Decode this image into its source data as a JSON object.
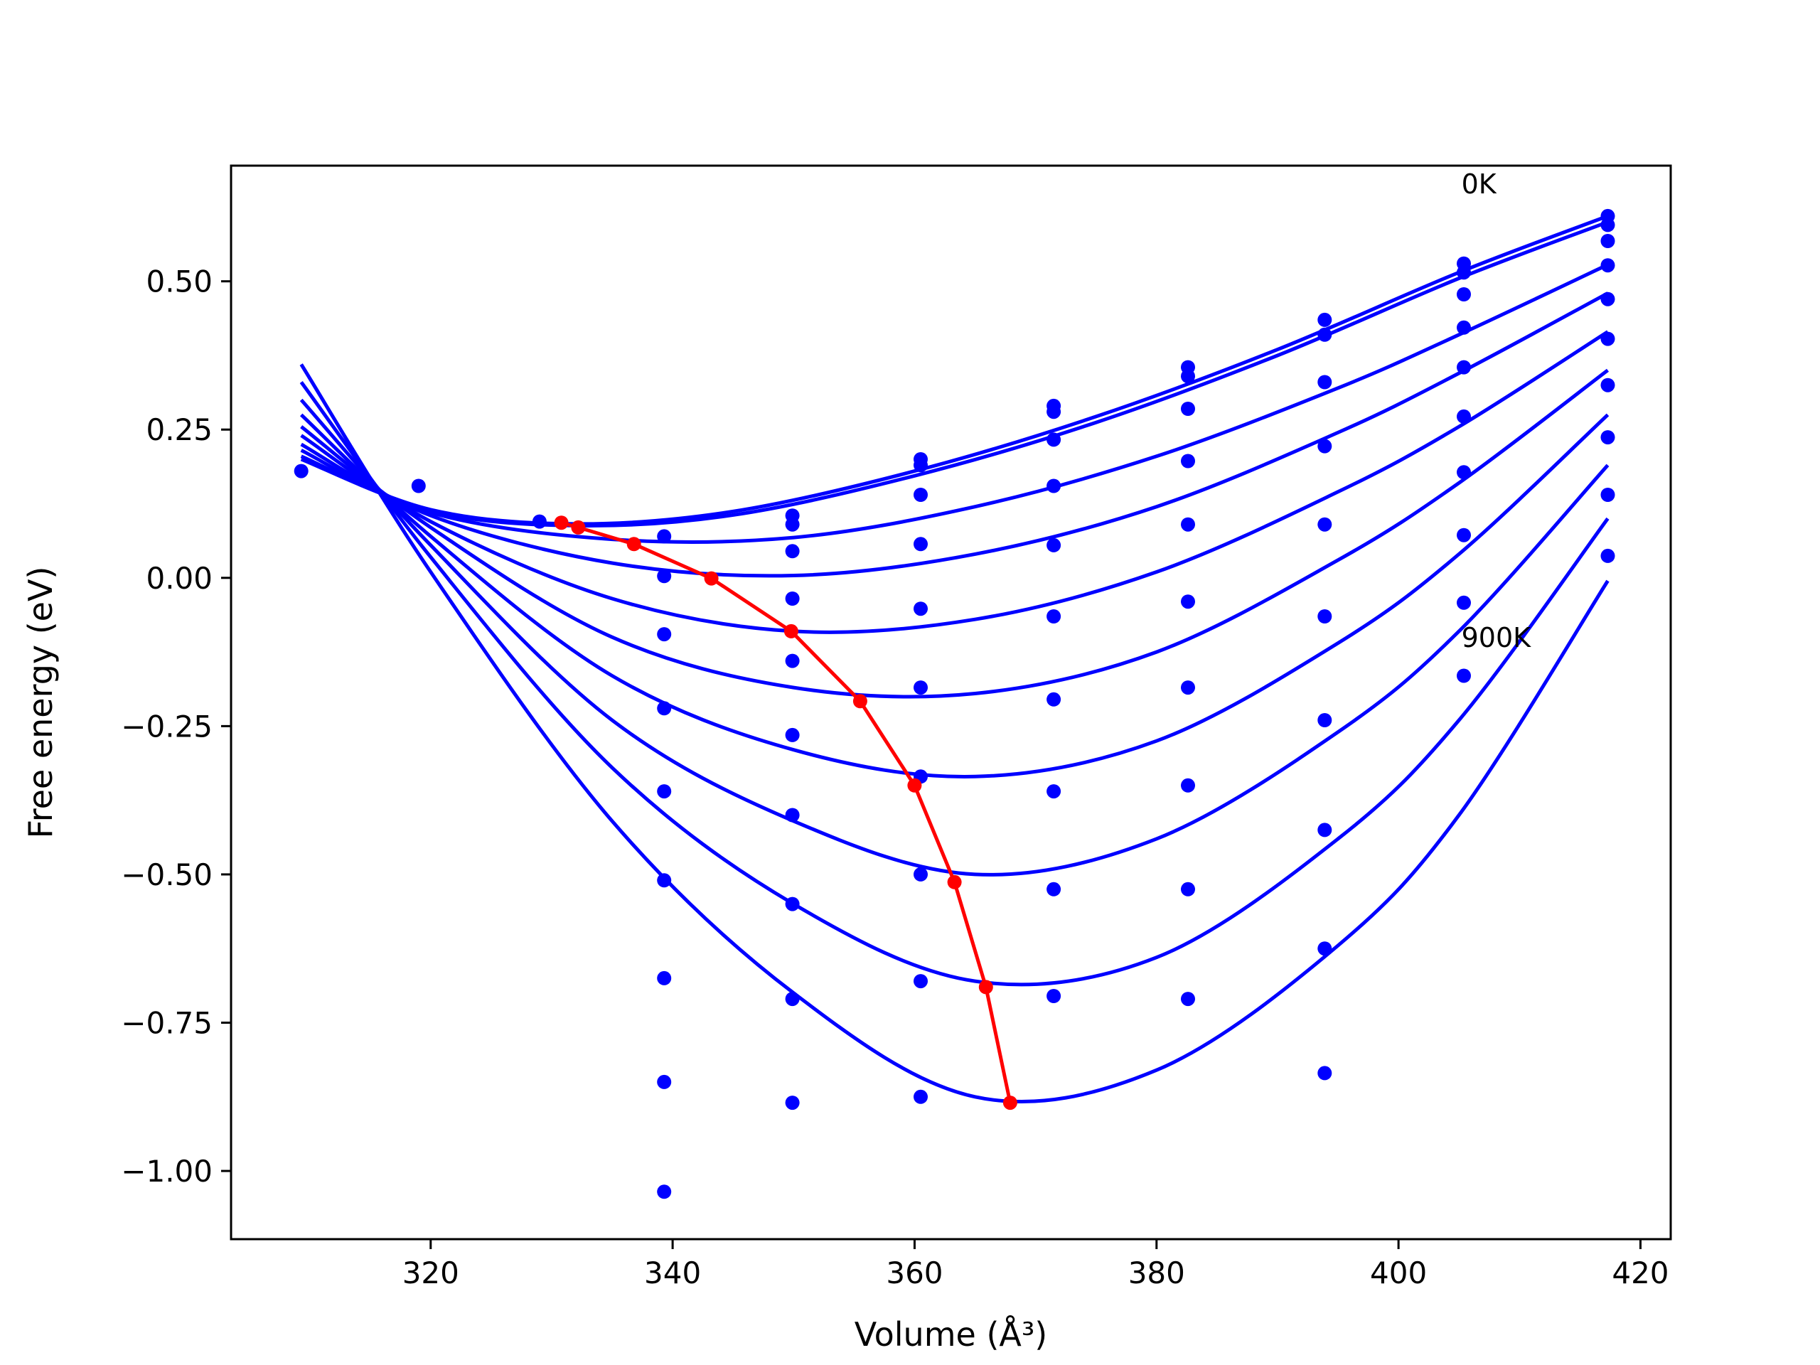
{
  "chart_data": {
    "type": "scatter",
    "title": "",
    "xlabel": "Volume (Å³)",
    "ylabel": "Free energy (eV)",
    "xlim": [
      303.5,
      422.5
    ],
    "ylim": [
      -1.115,
      0.695
    ],
    "x_ticks": [
      320,
      340,
      360,
      380,
      400,
      420
    ],
    "x_tick_labels": [
      "320",
      "340",
      "360",
      "380",
      "400",
      "420"
    ],
    "y_ticks": [
      0.5,
      0.25,
      0.0,
      -0.25,
      -0.5,
      -0.75,
      -1.0
    ],
    "y_tick_labels": [
      "0.50",
      "0.25",
      "0.00",
      "−0.25",
      "−0.50",
      "−0.75",
      "−1.00"
    ],
    "grid": false,
    "annotations": [
      {
        "text": "0K",
        "x": 405.2,
        "y": 0.665
      },
      {
        "text": "900K",
        "x": 405.2,
        "y": -0.1
      }
    ],
    "fit_curves": {
      "color": "#0000ff",
      "x_range": [
        309.3,
        417.3
      ],
      "curves": [
        {
          "x": [
            309.3,
            320,
            332,
            345,
            360,
            375,
            390,
            405,
            417.3
          ],
          "y": [
            0.2,
            0.115,
            0.091,
            0.112,
            0.18,
            0.272,
            0.385,
            0.515,
            0.61
          ]
        },
        {
          "x": [
            309.3,
            320,
            332,
            345,
            360,
            375,
            390,
            405,
            417.3
          ],
          "y": [
            0.205,
            0.113,
            0.088,
            0.106,
            0.172,
            0.262,
            0.375,
            0.505,
            0.6
          ]
        },
        {
          "x": [
            309.3,
            320,
            335,
            350,
            365,
            380,
            395,
            405,
            417.3
          ],
          "y": [
            0.215,
            0.11,
            0.065,
            0.068,
            0.12,
            0.205,
            0.32,
            0.41,
            0.528
          ]
        },
        {
          "x": [
            309.3,
            320,
            335,
            350,
            365,
            380,
            395,
            405,
            417.3
          ],
          "y": [
            0.225,
            0.105,
            0.025,
            0.004,
            0.04,
            0.12,
            0.245,
            0.345,
            0.48
          ]
        },
        {
          "x": [
            309.3,
            320,
            335,
            350,
            365,
            380,
            395,
            405,
            417.3
          ],
          "y": [
            0.24,
            0.095,
            -0.035,
            -0.09,
            -0.07,
            0.01,
            0.145,
            0.255,
            0.415
          ]
        },
        {
          "x": [
            309.3,
            320,
            335,
            350,
            365,
            380,
            395,
            405,
            417.3
          ],
          "y": [
            0.255,
            0.085,
            -0.1,
            -0.185,
            -0.195,
            -0.125,
            0.03,
            0.16,
            0.35
          ]
        },
        {
          "x": [
            309.3,
            320,
            335,
            350,
            365,
            380,
            395,
            405,
            417.3
          ],
          "y": [
            0.275,
            0.07,
            -0.165,
            -0.29,
            -0.335,
            -0.275,
            -0.11,
            0.04,
            0.275
          ]
        },
        {
          "x": [
            309.3,
            320,
            335,
            350,
            365,
            380,
            395,
            405,
            417.3
          ],
          "y": [
            0.3,
            0.055,
            -0.24,
            -0.41,
            -0.5,
            -0.44,
            -0.26,
            -0.09,
            0.19
          ]
        },
        {
          "x": [
            309.3,
            320,
            335,
            350,
            365,
            380,
            395,
            405,
            417.3
          ],
          "y": [
            0.33,
            0.035,
            -0.32,
            -0.55,
            -0.68,
            -0.64,
            -0.44,
            -0.24,
            0.1
          ]
        },
        {
          "x": [
            309.3,
            320,
            335,
            350,
            365,
            380,
            395,
            405,
            417.3
          ],
          "y": [
            0.36,
            0.01,
            -0.41,
            -0.7,
            -0.875,
            -0.83,
            -0.62,
            -0.4,
            -0.005
          ]
        }
      ]
    },
    "data_points": {
      "color": "#0000ff",
      "points": [
        [
          309.3,
          0.18
        ],
        [
          319,
          0.155
        ],
        [
          329,
          0.095
        ],
        [
          339.3,
          0.07
        ],
        [
          339.3,
          0.003
        ],
        [
          339.3,
          -0.095
        ],
        [
          339.3,
          -0.22
        ],
        [
          339.3,
          -0.36
        ],
        [
          339.3,
          -0.51
        ],
        [
          339.3,
          -0.675
        ],
        [
          339.3,
          -0.85
        ],
        [
          339.3,
          -1.035
        ],
        [
          349.9,
          0.105
        ],
        [
          349.9,
          0.09
        ],
        [
          349.9,
          0.045
        ],
        [
          349.9,
          -0.035
        ],
        [
          349.9,
          -0.14
        ],
        [
          349.9,
          -0.265
        ],
        [
          349.9,
          -0.4
        ],
        [
          349.9,
          -0.55
        ],
        [
          349.9,
          -0.71
        ],
        [
          349.9,
          -0.885
        ],
        [
          360.5,
          0.2
        ],
        [
          360.5,
          0.19
        ],
        [
          360.5,
          0.14
        ],
        [
          360.5,
          0.057
        ],
        [
          360.5,
          -0.052
        ],
        [
          360.5,
          -0.185
        ],
        [
          360.5,
          -0.335
        ],
        [
          360.5,
          -0.5
        ],
        [
          360.5,
          -0.68
        ],
        [
          360.5,
          -0.875
        ],
        [
          371.5,
          0.29
        ],
        [
          371.5,
          0.28
        ],
        [
          371.5,
          0.233
        ],
        [
          371.5,
          0.155
        ],
        [
          371.5,
          0.055
        ],
        [
          371.5,
          -0.065
        ],
        [
          371.5,
          -0.205
        ],
        [
          371.5,
          -0.36
        ],
        [
          371.5,
          -0.525
        ],
        [
          371.5,
          -0.705
        ],
        [
          382.6,
          0.355
        ],
        [
          382.6,
          0.34
        ],
        [
          382.6,
          0.285
        ],
        [
          382.6,
          0.197
        ],
        [
          382.6,
          0.09
        ],
        [
          382.6,
          -0.04
        ],
        [
          382.6,
          -0.185
        ],
        [
          382.6,
          -0.35
        ],
        [
          382.6,
          -0.525
        ],
        [
          382.6,
          -0.71
        ],
        [
          393.9,
          0.435
        ],
        [
          393.9,
          0.41
        ],
        [
          393.9,
          0.33
        ],
        [
          393.9,
          0.222
        ],
        [
          393.9,
          0.09
        ],
        [
          393.9,
          -0.065
        ],
        [
          393.9,
          -0.24
        ],
        [
          393.9,
          -0.425
        ],
        [
          393.9,
          -0.625
        ],
        [
          393.9,
          -0.835
        ],
        [
          405.4,
          0.53
        ],
        [
          405.4,
          0.515
        ],
        [
          405.4,
          0.478
        ],
        [
          405.4,
          0.422
        ],
        [
          405.4,
          0.355
        ],
        [
          405.4,
          0.272
        ],
        [
          405.4,
          0.178
        ],
        [
          405.4,
          0.072
        ],
        [
          405.4,
          -0.042
        ],
        [
          405.4,
          -0.165
        ],
        [
          417.3,
          0.61
        ],
        [
          417.3,
          0.595
        ],
        [
          417.3,
          0.568
        ],
        [
          417.3,
          0.527
        ],
        [
          417.3,
          0.47
        ],
        [
          417.3,
          0.403
        ],
        [
          417.3,
          0.325
        ],
        [
          417.3,
          0.237
        ],
        [
          417.3,
          0.14
        ],
        [
          417.3,
          0.037
        ]
      ]
    },
    "minimum_path": {
      "color": "#ff0000",
      "x": [
        330.8,
        332.2,
        336.8,
        343.2,
        349.8,
        355.5,
        360,
        363.3,
        365.9,
        367.9
      ],
      "y": [
        0.093,
        0.085,
        0.057,
        -0.001,
        -0.09,
        -0.208,
        -0.35,
        -0.513,
        -0.69,
        -0.885
      ]
    }
  }
}
